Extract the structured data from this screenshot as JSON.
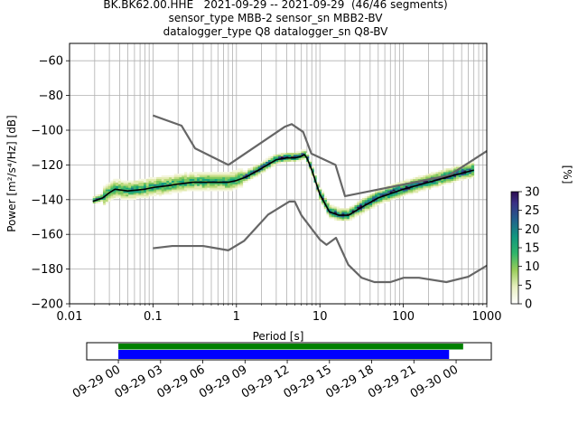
{
  "title_lines": [
    "BK.BK62.00.HHE   2021-09-29 -- 2021-09-29  (46/46 segments)",
    "sensor_type MBB-2 sensor_sn MBB2-BV",
    "datalogger_type Q8 datalogger_sn Q8-BV"
  ],
  "chart_data": [
    {
      "type": "heatmap",
      "xlabel": "Period [s]",
      "ylabel": "Power [m²/s⁴/Hz] [dB]",
      "xscale": "log",
      "xlim": [
        0.01,
        1000
      ],
      "ylim": [
        -200,
        -50
      ],
      "xticks": [
        0.01,
        0.1,
        1,
        10,
        100,
        1000
      ],
      "xtick_labels": [
        "0.01",
        "0.1",
        "1",
        "10",
        "100",
        "1000"
      ],
      "yticks": [
        -200,
        -180,
        -160,
        -140,
        -120,
        -100,
        -80,
        -60
      ],
      "ytick_labels": [
        "−200",
        "−180",
        "−160",
        "−140",
        "−120",
        "−100",
        "−80",
        "−60"
      ],
      "grid": true,
      "colorbar": {
        "label": "[%]",
        "range": [
          0,
          30
        ],
        "ticks": [
          0,
          5,
          10,
          15,
          20,
          25,
          30
        ],
        "colormap": "pqlx"
      },
      "series": [
        {
          "name": "",
          "style": "mean",
          "color": "#000000",
          "x": [
            0.019,
            0.025,
            0.03,
            0.035,
            0.05,
            0.08,
            0.1,
            0.15,
            0.2,
            0.3,
            0.5,
            0.8,
            1.0,
            1.3,
            2.0,
            3.0,
            4.0,
            5.0,
            6.0,
            6.5,
            7.0,
            8.0,
            10.0,
            13.0,
            17.0,
            22.0,
            30.0,
            50.0,
            100.0,
            200.0,
            400.0,
            700.0
          ],
          "y": [
            -141,
            -139,
            -136,
            -134,
            -135,
            -134,
            -133,
            -132,
            -131,
            -130,
            -130,
            -130,
            -129,
            -127,
            -122,
            -117,
            -116,
            -116,
            -115,
            -114,
            -116,
            -123,
            -137,
            -147,
            -149,
            -149,
            -145,
            -139,
            -134,
            -130,
            -126,
            -123
          ]
        },
        {
          "name": "",
          "style": "new-high-noise-model",
          "color": "#666666",
          "x": [
            0.1,
            0.22,
            0.32,
            0.8,
            3.8,
            4.6,
            6.3,
            7.9,
            15.4,
            20.0,
            354.8,
            1000
          ],
          "y": [
            -91.5,
            -97.4,
            -110.5,
            -120,
            -98,
            -96.5,
            -101,
            -113.5,
            -120,
            -138,
            -126,
            -112
          ]
        },
        {
          "name": "",
          "style": "new-low-noise-model",
          "color": "#666666",
          "x": [
            0.1,
            0.17,
            0.4,
            0.8,
            1.24,
            2.4,
            4.3,
            5.0,
            6.0,
            10.0,
            12.0,
            15.6,
            21.9,
            31.6,
            45.0,
            70.0,
            101.0,
            154.0,
            328.0,
            600.0,
            1000
          ],
          "y": [
            -168,
            -166.7,
            -166.7,
            -169.2,
            -163.7,
            -148.6,
            -141.1,
            -141.1,
            -149,
            -163,
            -166,
            -162,
            -177.5,
            -185,
            -187.5,
            -187.5,
            -185,
            -185,
            -187.5,
            -184.4,
            -178
          ]
        }
      ]
    },
    {
      "type": "timeline",
      "xlim": [
        "2021-09-28 21:45",
        "2021-09-30 02:30"
      ],
      "xticks": [
        "2021-09-29 00:00",
        "2021-09-29 03:00",
        "2021-09-29 06:00",
        "2021-09-29 09:00",
        "2021-09-29 12:00",
        "2021-09-29 15:00",
        "2021-09-29 18:00",
        "2021-09-29 21:00",
        "2021-09-30 00:00"
      ],
      "xtick_labels": [
        "09-29 00",
        "09-29 03",
        "09-29 06",
        "09-29 09",
        "09-29 12",
        "09-29 15",
        "09-29 18",
        "09-29 21",
        "09-30 00"
      ],
      "series": [
        {
          "name": "",
          "color": "#008000",
          "start": "2021-09-29 00:00",
          "end": "2021-09-30 00:30"
        },
        {
          "name": "",
          "color": "#0000ff",
          "start": "2021-09-29 00:00",
          "end": "2021-09-29 23:30"
        }
      ]
    }
  ]
}
